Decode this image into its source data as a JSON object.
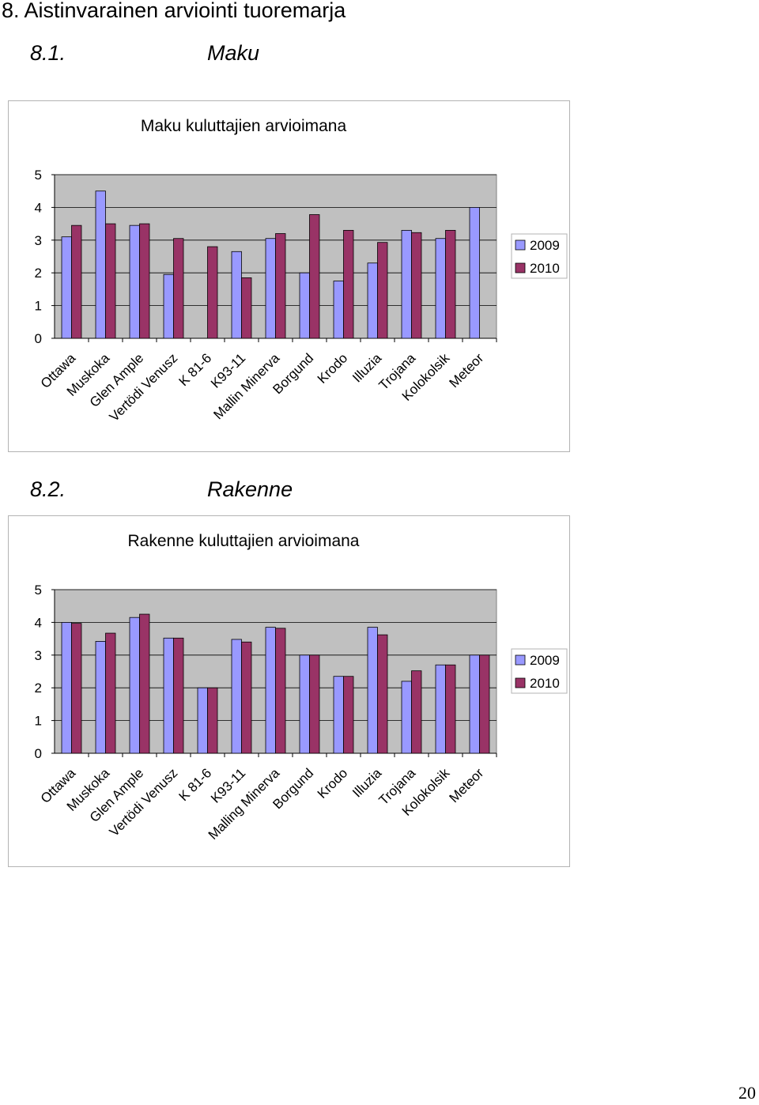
{
  "section_heading": "8. Aistinvarainen arviointi tuoremarja",
  "sections": [
    {
      "number": "8.1.",
      "name": "Maku"
    },
    {
      "number": "8.2.",
      "name": "Rakenne"
    }
  ],
  "page_number": "20",
  "colors": {
    "series_2009": "#9999ff",
    "series_2010": "#993366",
    "plot_bg": "#c0c0c0"
  },
  "chart_data": [
    {
      "type": "bar",
      "title": "Maku kuluttajien arvioimana",
      "categories": [
        "Ottawa",
        "Muskoka",
        "Glen Ample",
        "Vertödi Venusz",
        "K 81-6",
        "K93-11",
        "Mallin Minerva",
        "Borgund",
        "Krodo",
        "Illuzia",
        "Trojana",
        "Kolokolsik",
        "Meteor"
      ],
      "series": [
        {
          "name": "2009",
          "values": [
            3.1,
            4.5,
            3.45,
            1.95,
            null,
            2.65,
            3.05,
            2.0,
            1.75,
            2.3,
            3.3,
            3.05,
            4.0
          ]
        },
        {
          "name": "2010",
          "values": [
            3.45,
            3.5,
            3.5,
            3.05,
            2.8,
            1.85,
            3.2,
            3.78,
            3.3,
            2.93,
            3.23,
            3.3,
            null
          ]
        }
      ],
      "ylim": [
        0,
        5
      ],
      "yticks": [
        "0",
        "1",
        "2",
        "3",
        "4",
        "5"
      ],
      "grid": true,
      "legend": "right"
    },
    {
      "type": "bar",
      "title": "Rakenne kuluttajien arvioimana",
      "categories": [
        "Ottawa",
        "Muskoka",
        "Glen Ample",
        "Vertödi Venusz",
        "K 81-6",
        "K93-11",
        "Malling Minerva",
        "Borgund",
        "Krodo",
        "Illuzia",
        "Trojana",
        "Kolokolsik",
        "Meteor"
      ],
      "series": [
        {
          "name": "2009",
          "values": [
            4.0,
            3.42,
            4.15,
            3.52,
            2.0,
            3.48,
            3.85,
            3.0,
            2.35,
            3.85,
            2.2,
            2.7,
            3.0
          ]
        },
        {
          "name": "2010",
          "values": [
            3.97,
            3.67,
            4.25,
            3.52,
            2.0,
            3.4,
            3.82,
            3.0,
            2.35,
            3.62,
            2.52,
            2.7,
            3.0
          ]
        }
      ],
      "ylim": [
        0,
        5
      ],
      "yticks": [
        "0",
        "1",
        "2",
        "3",
        "4",
        "5"
      ],
      "grid": true,
      "legend": "right"
    }
  ]
}
